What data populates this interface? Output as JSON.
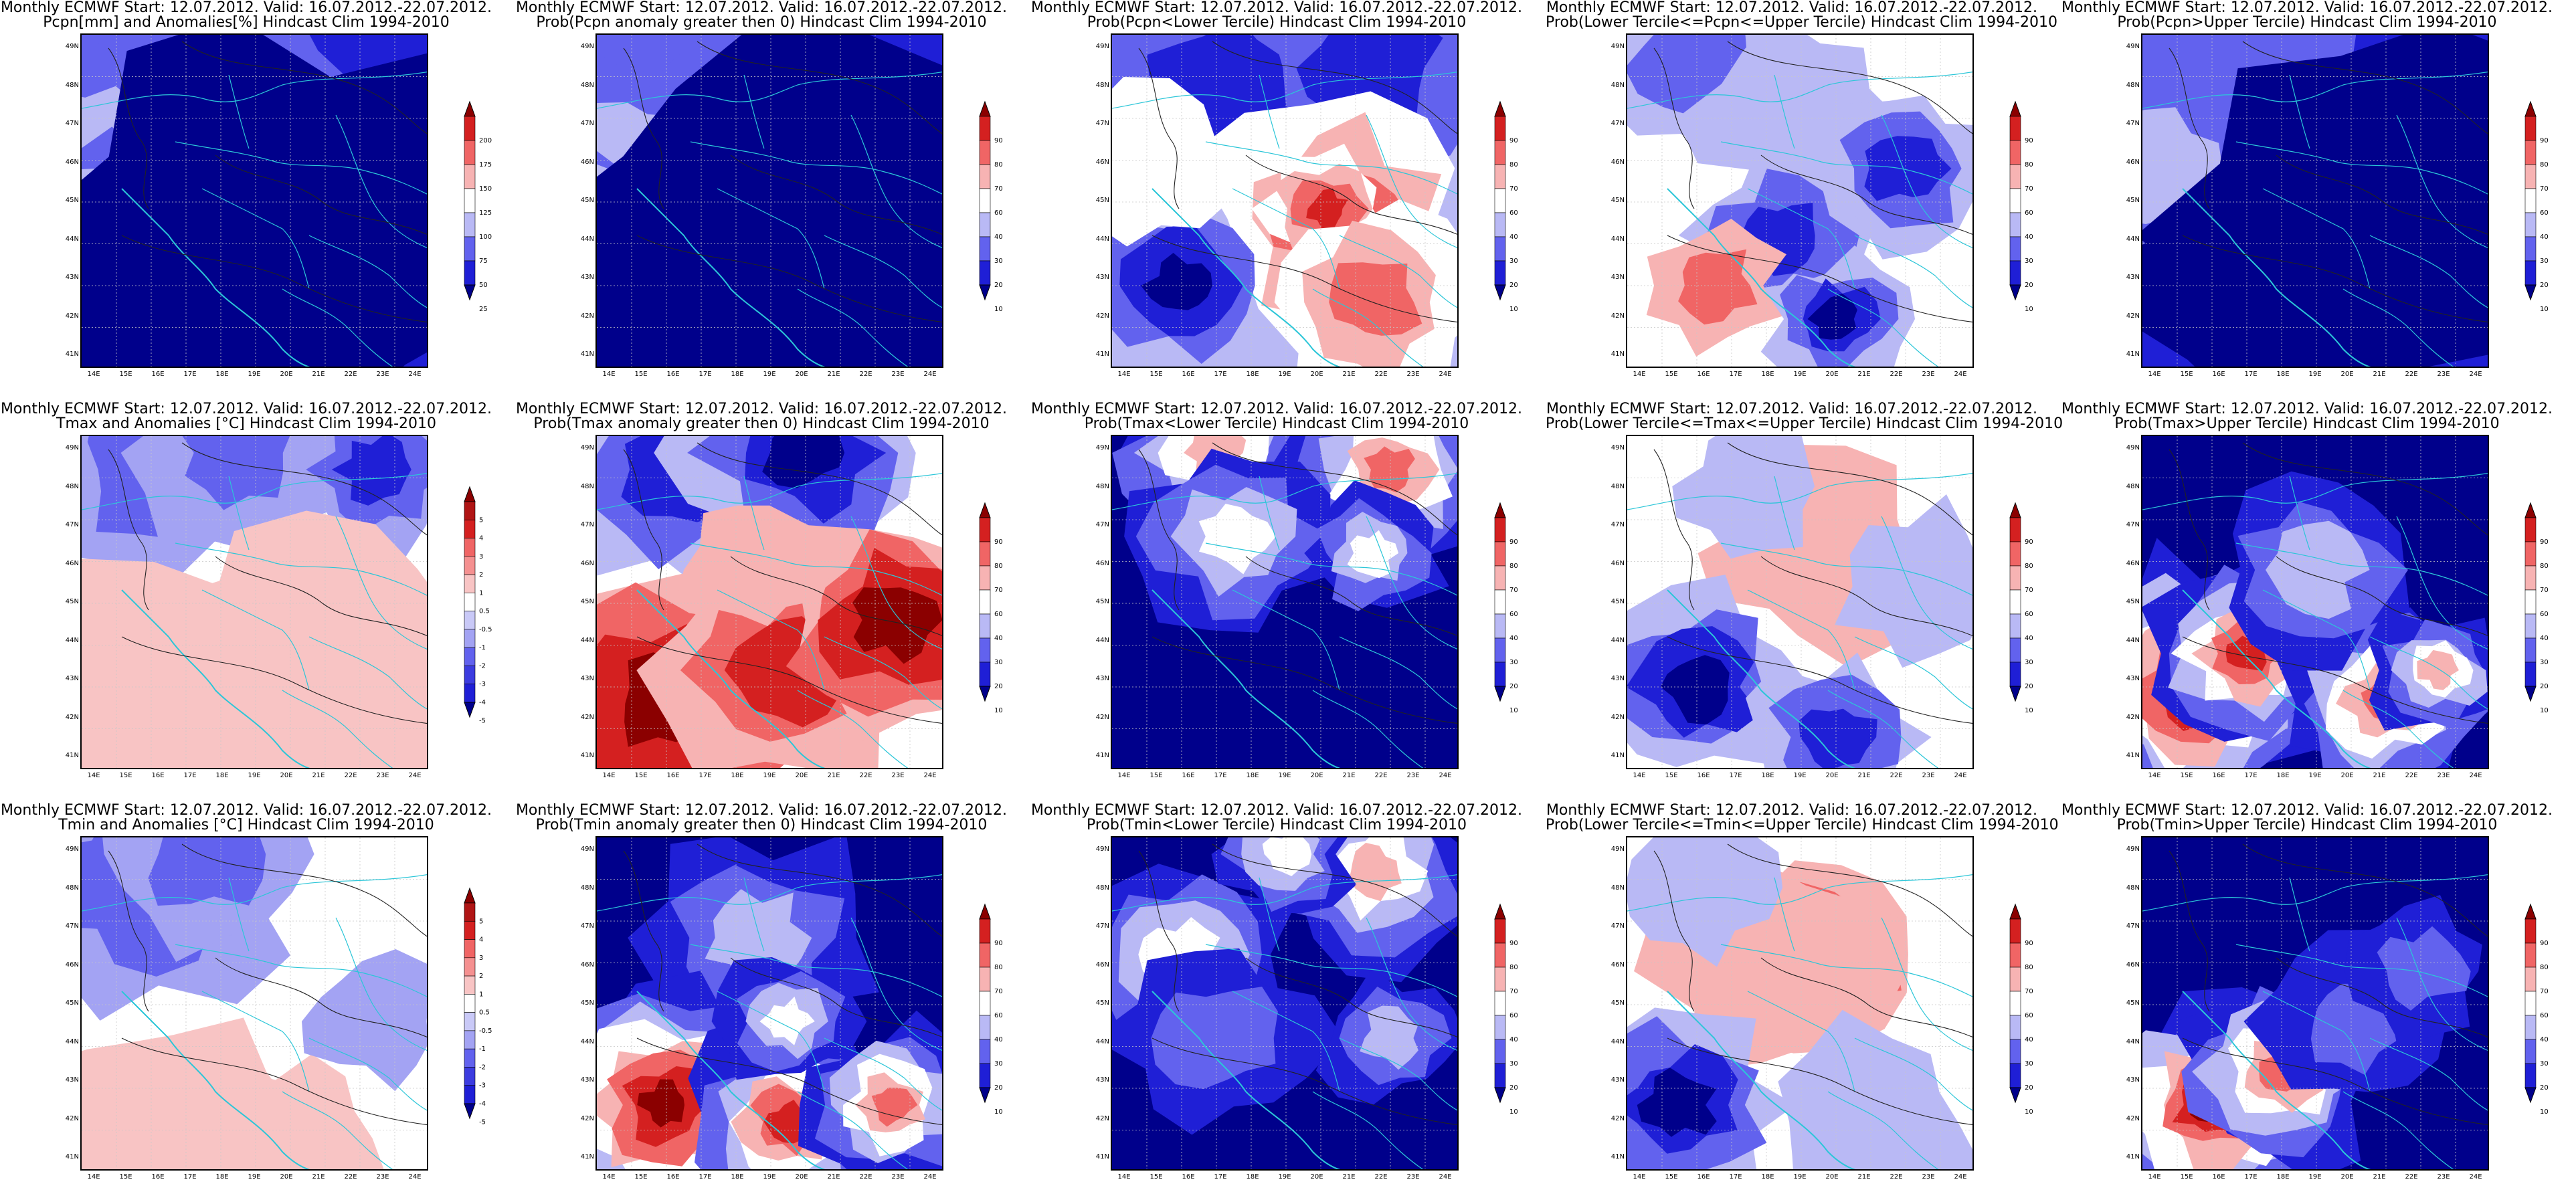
{
  "figure": {
    "rows": [
      {
        "variable": "pcpn",
        "panels": [
          {
            "title_line1": "Monthly ECMWF Start: 12.07.2012. Valid: 16.07.2012.-22.07.2012.",
            "title_line2": "Pcpn[mm] and Anomalies[%] Hindcast Clim 1994-2010",
            "legend": "pcpn_anom",
            "pattern": "pcpn_anom"
          },
          {
            "title_line1": "Monthly ECMWF Start: 12.07.2012. Valid: 16.07.2012.-22.07.2012.",
            "title_line2": "Prob(Pcpn anomaly greater then 0) Hindcast Clim 1994-2010",
            "legend": "prob",
            "pattern": "pcpn_pos"
          },
          {
            "title_line1": "Monthly ECMWF Start: 12.07.2012. Valid: 16.07.2012.-22.07.2012.",
            "title_line2": "Prob(Pcpn<Lower Tercile) Hindcast Clim 1994-2010",
            "legend": "prob",
            "pattern": "pcpn_low"
          },
          {
            "title_line1": "Monthly ECMWF Start: 12.07.2012. Valid: 16.07.2012.-22.07.2012.",
            "title_line2": "Prob(Lower Tercile<=Pcpn<=Upper Tercile) Hindcast Clim 1994-2010",
            "legend": "prob",
            "pattern": "pcpn_mid"
          },
          {
            "title_line1": "Monthly ECMWF Start: 12.07.2012. Valid: 16.07.2012.-22.07.2012.",
            "title_line2": "Prob(Pcpn>Upper Tercile) Hindcast Clim 1994-2010",
            "legend": "prob",
            "pattern": "pcpn_up"
          }
        ]
      },
      {
        "variable": "tmax",
        "panels": [
          {
            "title_line1": "Monthly ECMWF Start: 12.07.2012. Valid: 16.07.2012.-22.07.2012.",
            "title_line2": "Tmax and Anomalies [°C] Hindcast Clim 1994-2010",
            "legend": "temp_anom",
            "pattern": "tmax_anom"
          },
          {
            "title_line1": "Monthly ECMWF Start: 12.07.2012. Valid: 16.07.2012.-22.07.2012.",
            "title_line2": "Prob(Tmax anomaly greater then 0) Hindcast Clim 1994-2010",
            "legend": "prob",
            "pattern": "tmax_pos"
          },
          {
            "title_line1": "Monthly ECMWF Start: 12.07.2012. Valid: 16.07.2012.-22.07.2012.",
            "title_line2": "Prob(Tmax<Lower Tercile) Hindcast Clim 1994-2010",
            "legend": "prob",
            "pattern": "tmax_low"
          },
          {
            "title_line1": "Monthly ECMWF Start: 12.07.2012. Valid: 16.07.2012.-22.07.2012.",
            "title_line2": "Prob(Lower Tercile<=Tmax<=Upper Tercile) Hindcast Clim 1994-2010",
            "legend": "prob",
            "pattern": "tmax_mid"
          },
          {
            "title_line1": "Monthly ECMWF Start: 12.07.2012. Valid: 16.07.2012.-22.07.2012.",
            "title_line2": "Prob(Tmax>Upper Tercile) Hindcast Clim 1994-2010",
            "legend": "prob",
            "pattern": "tmax_up"
          }
        ]
      },
      {
        "variable": "tmin",
        "panels": [
          {
            "title_line1": "Monthly ECMWF Start: 12.07.2012. Valid: 16.07.2012.-22.07.2012.",
            "title_line2": "Tmin and Anomalies [°C] Hindcast Clim 1994-2010",
            "legend": "temp_anom",
            "pattern": "tmin_anom"
          },
          {
            "title_line1": "Monthly ECMWF Start: 12.07.2012. Valid: 16.07.2012.-22.07.2012.",
            "title_line2": "Prob(Tmin anomaly greater then 0) Hindcast Clim 1994-2010",
            "legend": "prob",
            "pattern": "tmin_pos"
          },
          {
            "title_line1": "Monthly ECMWF Start: 12.07.2012. Valid: 16.07.2012.-22.07.2012.",
            "title_line2": "Prob(Tmin<Lower Tercile) Hindcast Clim 1994-2010",
            "legend": "prob",
            "pattern": "tmin_low"
          },
          {
            "title_line1": "Monthly ECMWF Start: 12.07.2012. Valid: 16.07.2012.-22.07.2012.",
            "title_line2": "Prob(Lower Tercile<=Tmin<=Upper Tercile) Hindcast Clim 1994-2010",
            "legend": "prob",
            "pattern": "tmin_mid"
          },
          {
            "title_line1": "Monthly ECMWF Start: 12.07.2012. Valid: 16.07.2012.-22.07.2012.",
            "title_line2": "Prob(Tmin>Upper Tercile) Hindcast Clim 1994-2010",
            "legend": "prob",
            "pattern": "tmin_up"
          }
        ]
      }
    ]
  },
  "axes": {
    "lat_labels": [
      "49N",
      "48N",
      "47N",
      "46N",
      "45N",
      "44N",
      "43N",
      "42N",
      "41N"
    ],
    "lon_labels": [
      "14E",
      "15E",
      "16E",
      "17E",
      "18E",
      "19E",
      "20E",
      "21E",
      "22E",
      "23E",
      "24E"
    ]
  },
  "legends": {
    "pcpn_anom": {
      "labels": [
        "200",
        "175",
        "150",
        "125",
        "100",
        "75",
        "50",
        "25"
      ],
      "colors": [
        "#8b0000",
        "#d42020",
        "#f06565",
        "#f7b3b3",
        "#ffffff",
        "#b9b9f5",
        "#6262ee",
        "#1f1fd6",
        "#00008b"
      ]
    },
    "prob": {
      "labels": [
        "90",
        "80",
        "70",
        "60",
        "40",
        "30",
        "20",
        "10"
      ],
      "colors": [
        "#8b0000",
        "#d42020",
        "#f06565",
        "#f7b3b3",
        "#ffffff",
        "#b9b9f5",
        "#6262ee",
        "#1f1fd6",
        "#00008b"
      ]
    },
    "temp_anom": {
      "labels": [
        "5",
        "4",
        "3",
        "2",
        "1",
        "0.5",
        "-0.5",
        "-1",
        "-2",
        "-3",
        "-4",
        "-5"
      ],
      "colors": [
        "#8b0000",
        "#b01515",
        "#d42020",
        "#f06565",
        "#f59090",
        "#f8c4c4",
        "#ffffff",
        "#c9c9f7",
        "#a3a3f3",
        "#6262ee",
        "#3c3ce0",
        "#1f1fd6",
        "#00008b"
      ]
    }
  },
  "palette": {
    "background": "#ffffff",
    "border_lines": "#2cc6d8",
    "contour_lines": "#222222",
    "grid_lines": "#c8c8c8"
  }
}
